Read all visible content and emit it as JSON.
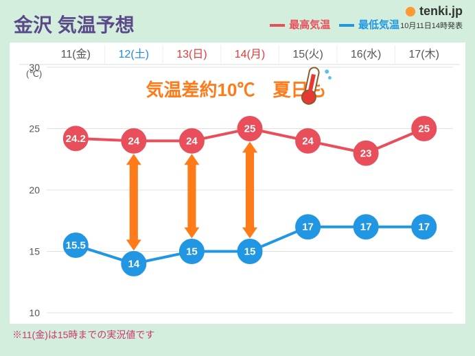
{
  "title": "金沢 気温予想",
  "legend": {
    "high_label": "最高気温",
    "low_label": "最低気温",
    "high_color": "#e94f5a",
    "low_color": "#2196e3"
  },
  "brand": {
    "name": "tenki.jp",
    "timestamp": "10月11日14時発表"
  },
  "footnote": "※11(金)は15時までの実況値です",
  "annotation": {
    "text": "気温差約10℃　夏日も",
    "color": "#ff7b1a"
  },
  "chart": {
    "type": "line",
    "unit_label": "(℃)",
    "ylim": [
      10,
      30
    ],
    "ytick_step": 5,
    "grid_color": "#e0e0e0",
    "background_color": "#ffffff",
    "x": [
      {
        "label": "11(金)",
        "cls": ""
      },
      {
        "label": "12(土)",
        "cls": "blue"
      },
      {
        "label": "13(日)",
        "cls": "red"
      },
      {
        "label": "14(月)",
        "cls": "red"
      },
      {
        "label": "15(火)",
        "cls": ""
      },
      {
        "label": "16(水)",
        "cls": ""
      },
      {
        "label": "17(木)",
        "cls": ""
      }
    ],
    "high": {
      "color": "#e94f5a",
      "values": [
        24.2,
        24,
        24,
        25,
        24,
        23,
        25
      ],
      "labels": [
        "24.2",
        "24",
        "24",
        "25",
        "24",
        "23",
        "25"
      ],
      "radius": 17
    },
    "low": {
      "color": "#2196e3",
      "values": [
        15.5,
        14,
        15,
        15,
        17,
        17,
        17
      ],
      "labels": [
        "15.5",
        "14",
        "15",
        "15",
        "17",
        "17",
        "17"
      ],
      "radius": 17
    },
    "arrow_indices": [
      1,
      2,
      3
    ],
    "thermometer_at": 3
  }
}
